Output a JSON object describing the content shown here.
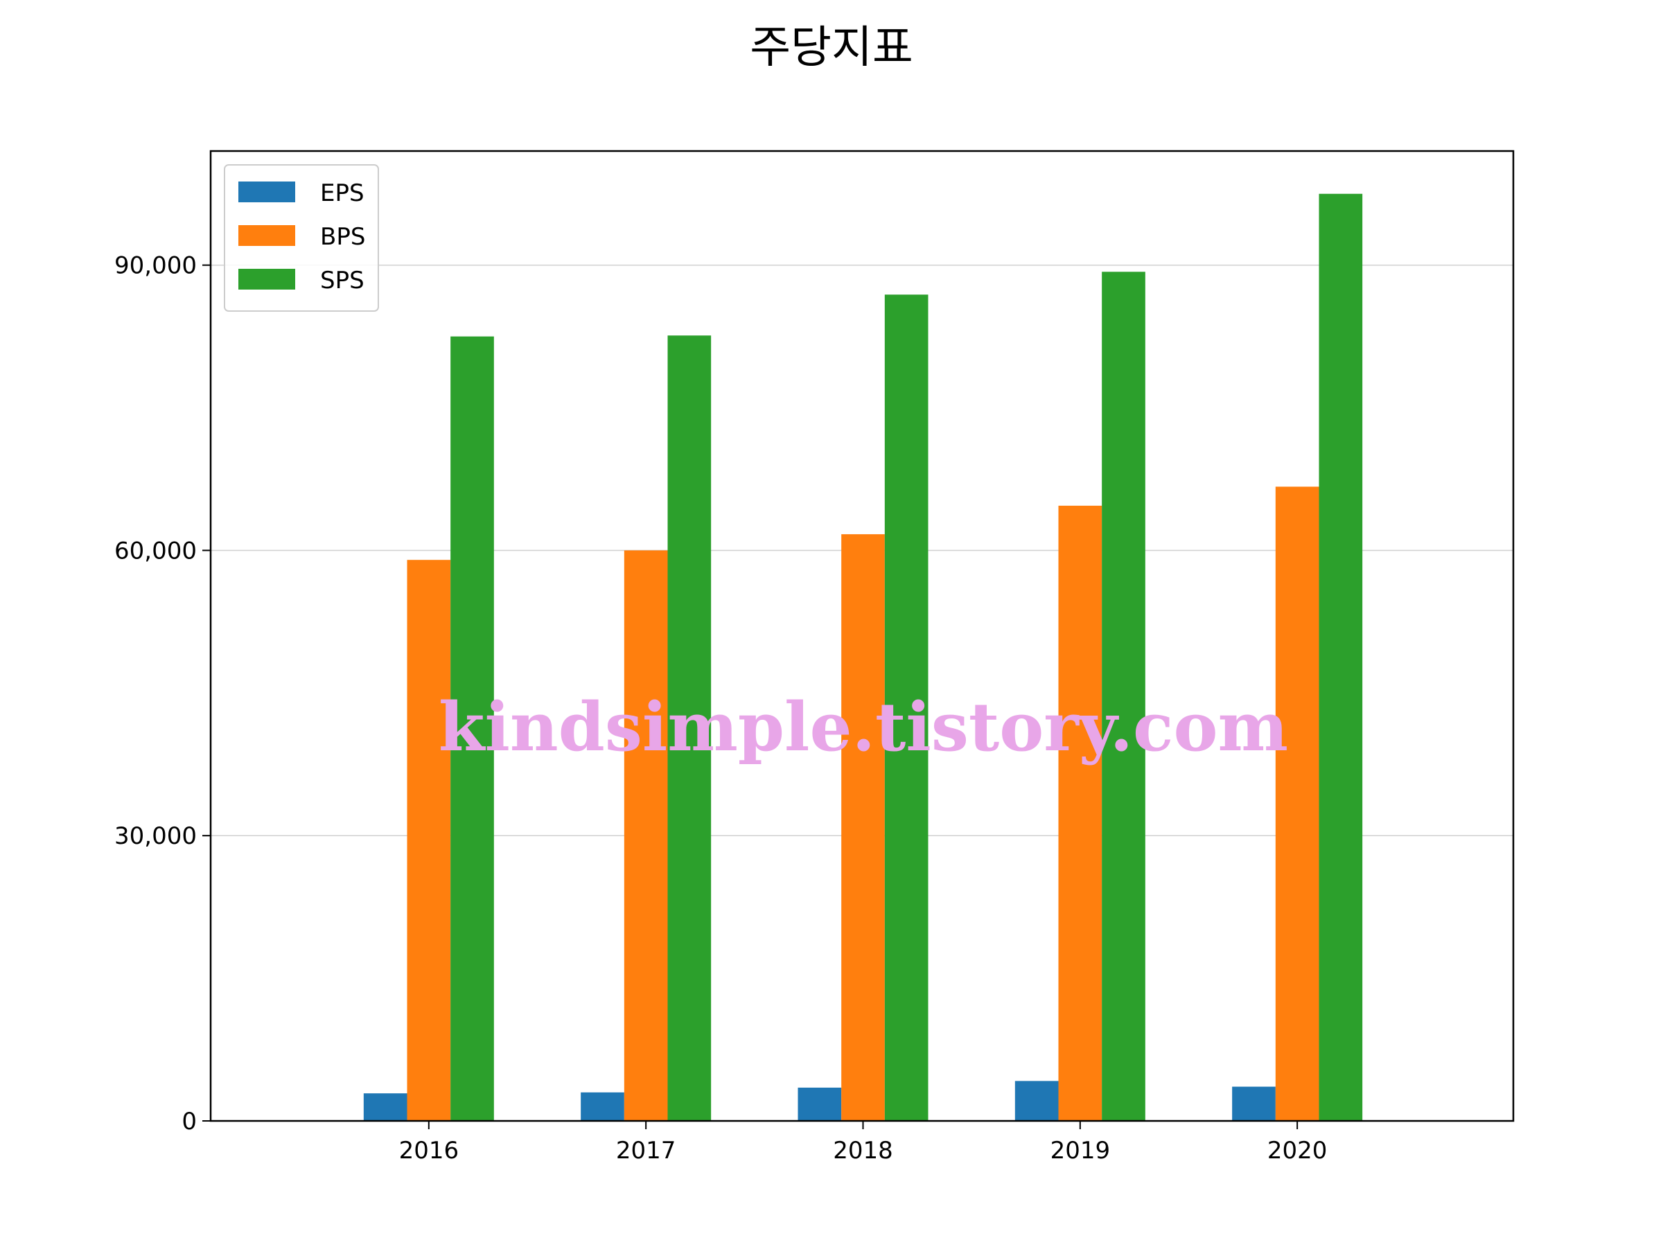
{
  "chart_data": {
    "type": "bar",
    "title": "주당지표",
    "xlabel": "",
    "ylabel": "",
    "categories": [
      "2016",
      "2017",
      "2018",
      "2019",
      "2020"
    ],
    "series": [
      {
        "name": "EPS",
        "color": "#1f77b4",
        "values": [
          2900,
          3000,
          3500,
          4200,
          3600
        ]
      },
      {
        "name": "BPS",
        "color": "#ff7f0e",
        "values": [
          59000,
          60000,
          61700,
          64700,
          66700
        ]
      },
      {
        "name": "SPS",
        "color": "#2ca02c",
        "values": [
          82500,
          82600,
          86900,
          89300,
          97500
        ]
      }
    ],
    "ylim": [
      0,
      102000
    ],
    "yticks": [
      0,
      30000,
      60000,
      90000
    ],
    "ytick_labels": [
      "0",
      "30,000",
      "60,000",
      "90,000"
    ],
    "grid": "horizontal",
    "legend_position": "top-left"
  },
  "watermark": "kindsimple.tistory.com"
}
